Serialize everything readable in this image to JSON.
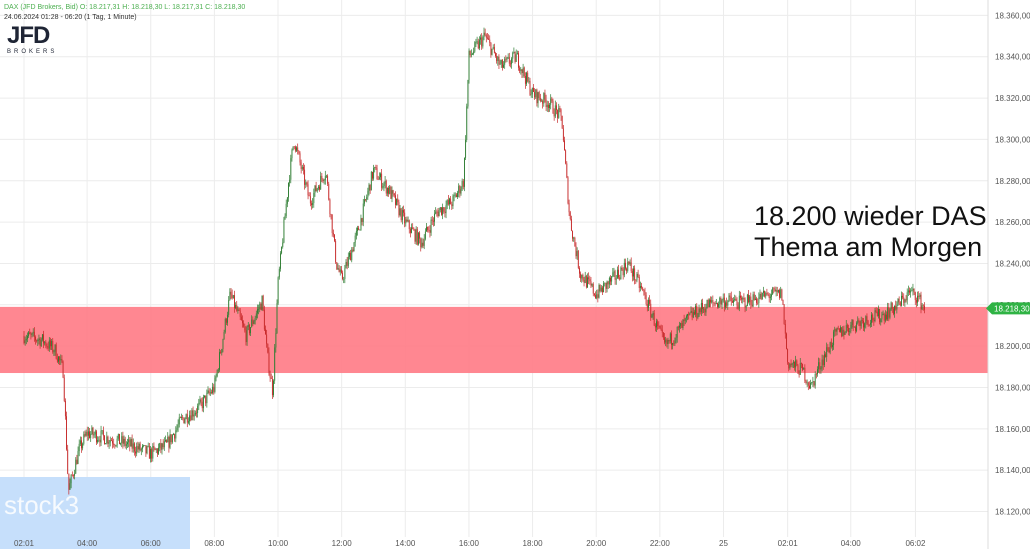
{
  "header": {
    "line1": "DAX (JFD Brokers, Bid)  O: 18.217,31  H: 18.218,30  L: 18.217,31  C: 18.218,30",
    "line2": "24.06.2024 01:28 - 06:20  (1 Tag, 1 Minute)"
  },
  "logo": {
    "main": "JFD",
    "sub": "BROKERS"
  },
  "annotation": [
    "18.200 wieder DAS",
    "Thema am Morgen"
  ],
  "watermark": "stock3",
  "price_label": "18.218,30",
  "colors": {
    "up": "#2e7d32",
    "down": "#c62828",
    "zone": "#ff7a85",
    "low_box": "#c6dffb",
    "price_label": "#2fb344",
    "grid": "#ececec"
  },
  "chart_data": {
    "type": "candlestick",
    "title": "DAX (JFD Brokers, Bid)",
    "x_ticks": [
      "02:01",
      "04:00",
      "06:00",
      "08:00",
      "10:00",
      "12:00",
      "14:00",
      "16:00",
      "18:00",
      "20:00",
      "22:00",
      "25",
      "02:01",
      "04:00",
      "06:02"
    ],
    "y_ticks": [
      "18.120,00",
      "18.140,00",
      "18.160,00",
      "18.180,00",
      "18.200,00",
      "18.220,00",
      "18.240,00",
      "18.260,00",
      "18.280,00",
      "18.300,00",
      "18.320,00",
      "18.340,00",
      "18.360,00"
    ],
    "ylim": [
      18113,
      18366
    ],
    "last_price": 18218.3,
    "support_zone": [
      18187,
      18219
    ],
    "path": [
      [
        "02:01",
        18205
      ],
      [
        "02:35",
        18203
      ],
      [
        "03:00",
        18198
      ],
      [
        "03:15",
        18188
      ],
      [
        "03:25",
        18130
      ],
      [
        "03:45",
        18150
      ],
      [
        "04:00",
        18158
      ],
      [
        "05:00",
        18154
      ],
      [
        "06:00",
        18148
      ],
      [
        "06:30",
        18152
      ],
      [
        "07:00",
        18165
      ],
      [
        "07:30",
        18170
      ],
      [
        "08:00",
        18180
      ],
      [
        "08:30",
        18225
      ],
      [
        "09:00",
        18205
      ],
      [
        "09:30",
        18222
      ],
      [
        "09:40",
        18195
      ],
      [
        "09:50",
        18178
      ],
      [
        "10:00",
        18230
      ],
      [
        "10:20",
        18280
      ],
      [
        "10:30",
        18300
      ],
      [
        "11:00",
        18270
      ],
      [
        "11:30",
        18285
      ],
      [
        "11:50",
        18240
      ],
      [
        "12:00",
        18232
      ],
      [
        "12:30",
        18255
      ],
      [
        "13:00",
        18285
      ],
      [
        "13:30",
        18275
      ],
      [
        "14:00",
        18260
      ],
      [
        "14:30",
        18250
      ],
      [
        "15:00",
        18265
      ],
      [
        "15:30",
        18270
      ],
      [
        "15:50",
        18280
      ],
      [
        "16:00",
        18340
      ],
      [
        "16:30",
        18350
      ],
      [
        "17:00",
        18335
      ],
      [
        "17:30",
        18340
      ],
      [
        "18:00",
        18322
      ],
      [
        "18:30",
        18318
      ],
      [
        "18:55",
        18310
      ],
      [
        "19:10",
        18262
      ],
      [
        "19:30",
        18235
      ],
      [
        "20:00",
        18225
      ],
      [
        "20:30",
        18232
      ],
      [
        "21:00",
        18240
      ],
      [
        "21:30",
        18225
      ],
      [
        "21:50",
        18212
      ],
      [
        "22:10",
        18200
      ],
      [
        "22:30",
        18206
      ],
      [
        "23:00",
        18215
      ],
      [
        "23:30",
        18220
      ],
      [
        "00:00",
        18222
      ],
      [
        "00:30",
        18221
      ],
      [
        "01:00",
        18223
      ],
      [
        "01:30",
        18225
      ],
      [
        "01:50",
        18225
      ],
      [
        "02:01",
        18192
      ],
      [
        "02:30",
        18188
      ],
      [
        "02:45",
        18180
      ],
      [
        "03:00",
        18190
      ],
      [
        "03:30",
        18205
      ],
      [
        "04:00",
        18210
      ],
      [
        "04:30",
        18213
      ],
      [
        "05:00",
        18215
      ],
      [
        "05:30",
        18220
      ],
      [
        "05:50",
        18226
      ],
      [
        "06:02",
        18225
      ],
      [
        "06:20",
        18218
      ]
    ]
  }
}
